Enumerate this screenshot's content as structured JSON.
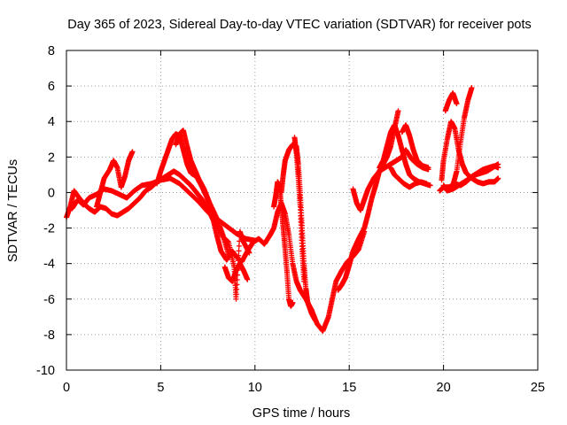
{
  "chart_data": {
    "type": "scatter",
    "title": "Day 365 of 2023, Sidereal Day-to-day VTEC variation (SDTVAR) for receiver pots",
    "xlabel": "GPS time / hours",
    "ylabel": "SDTVAR / TECUs",
    "xlim": [
      0,
      25
    ],
    "ylim": [
      -10,
      8
    ],
    "xticks": [
      0,
      5,
      10,
      15,
      20,
      25
    ],
    "yticks": [
      -10,
      -8,
      -6,
      -4,
      -2,
      0,
      2,
      4,
      6,
      8
    ],
    "grid": true,
    "marker": "+",
    "series": [
      {
        "name": "SDTVAR",
        "color": "#ff0000",
        "tracks": [
          [
            [
              0.0,
              -1.4
            ],
            [
              0.2,
              -0.8
            ],
            [
              0.4,
              0.1
            ],
            [
              0.6,
              -0.2
            ],
            [
              0.9,
              -0.6
            ],
            [
              1.2,
              -0.9
            ],
            [
              1.5,
              -1.1
            ],
            [
              1.8,
              -0.8
            ],
            [
              2.1,
              -0.9
            ],
            [
              2.4,
              -1.2
            ],
            [
              2.7,
              -1.3
            ],
            [
              3.0,
              -1.1
            ],
            [
              3.3,
              -0.9
            ],
            [
              3.6,
              -0.6
            ],
            [
              3.9,
              -0.3
            ],
            [
              4.2,
              0.1
            ],
            [
              4.5,
              0.3
            ],
            [
              4.8,
              0.6
            ],
            [
              5.1,
              0.8
            ],
            [
              5.4,
              1.0
            ],
            [
              5.7,
              1.2
            ],
            [
              6.0,
              1.0
            ],
            [
              6.3,
              0.7
            ],
            [
              6.6,
              0.4
            ],
            [
              6.9,
              0.0
            ],
            [
              7.2,
              -0.4
            ],
            [
              7.5,
              -0.9
            ],
            [
              7.8,
              -1.6
            ],
            [
              8.0,
              -2.5
            ],
            [
              8.2,
              -3.3
            ],
            [
              8.5,
              -3.8
            ],
            [
              8.8,
              -3.3
            ],
            [
              9.0,
              -3.6
            ],
            [
              9.3,
              -3.9
            ],
            [
              9.6,
              -3.3
            ],
            [
              9.9,
              -2.8
            ],
            [
              10.2,
              -2.6
            ],
            [
              10.5,
              -2.9
            ],
            [
              10.8,
              -2.4
            ],
            [
              11.0,
              -2.0
            ],
            [
              11.2,
              -1.1
            ],
            [
              11.4,
              -0.6
            ],
            [
              11.6,
              -1.2
            ],
            [
              11.8,
              -2.4
            ],
            [
              12.0,
              -4.0
            ],
            [
              12.2,
              -5.0
            ],
            [
              12.4,
              -5.5
            ],
            [
              12.7,
              -6.0
            ],
            [
              13.0,
              -6.6
            ],
            [
              13.3,
              -7.4
            ],
            [
              13.6,
              -7.8
            ],
            [
              13.9,
              -7.0
            ],
            [
              14.1,
              -6.0
            ],
            [
              14.3,
              -5.0
            ],
            [
              14.6,
              -4.4
            ],
            [
              14.9,
              -3.9
            ],
            [
              15.2,
              -3.6
            ],
            [
              15.5,
              -3.2
            ],
            [
              15.8,
              -2.2
            ]
          ],
          [
            [
              0.3,
              -0.9
            ],
            [
              0.6,
              -0.4
            ],
            [
              0.9,
              -0.7
            ],
            [
              1.2,
              -0.3
            ],
            [
              1.6,
              -0.1
            ],
            [
              2.0,
              0.2
            ],
            [
              2.4,
              0.1
            ],
            [
              2.8,
              -0.1
            ],
            [
              3.2,
              -0.3
            ],
            [
              3.6,
              0.1
            ],
            [
              4.0,
              0.4
            ],
            [
              4.5,
              0.5
            ],
            [
              5.0,
              0.7
            ],
            [
              5.5,
              0.8
            ],
            [
              6.0,
              0.5
            ],
            [
              6.5,
              0.0
            ],
            [
              7.0,
              -0.5
            ],
            [
              7.5,
              -1.1
            ],
            [
              8.0,
              -1.5
            ],
            [
              8.5,
              -1.9
            ],
            [
              9.0,
              -2.3
            ],
            [
              9.5,
              -2.6
            ],
            [
              10.0,
              -2.7
            ]
          ],
          [
            [
              4.8,
              0.5
            ],
            [
              5.0,
              1.2
            ],
            [
              5.2,
              1.8
            ],
            [
              5.4,
              2.4
            ],
            [
              5.6,
              3.0
            ],
            [
              5.8,
              3.3
            ],
            [
              6.0,
              3.2
            ],
            [
              6.2,
              2.4
            ],
            [
              6.4,
              1.6
            ],
            [
              6.6,
              1.1
            ],
            [
              6.9,
              0.9
            ],
            [
              7.2,
              0.3
            ],
            [
              7.5,
              -0.4
            ],
            [
              7.8,
              -1.1
            ],
            [
              8.0,
              -1.8
            ],
            [
              8.3,
              -2.5
            ],
            [
              8.6,
              -2.8
            ],
            [
              8.9,
              -4.2
            ],
            [
              9.0,
              -6.0
            ],
            [
              9.2,
              -2.2
            ],
            [
              9.4,
              -2.8
            ],
            [
              9.7,
              -3.4
            ]
          ],
          [
            [
              1.6,
              -0.8
            ],
            [
              1.8,
              0.0
            ],
            [
              2.0,
              0.8
            ],
            [
              2.3,
              1.3
            ],
            [
              2.5,
              1.8
            ],
            [
              2.7,
              1.4
            ],
            [
              2.9,
              0.3
            ],
            [
              3.1,
              0.9
            ],
            [
              3.3,
              1.8
            ],
            [
              3.5,
              2.3
            ]
          ],
          [
            [
              5.8,
              2.7
            ],
            [
              6.0,
              3.3
            ],
            [
              6.2,
              3.5
            ],
            [
              6.4,
              2.6
            ],
            [
              6.6,
              1.8
            ],
            [
              6.8,
              1.3
            ],
            [
              7.0,
              0.8
            ],
            [
              7.3,
              0.2
            ],
            [
              7.6,
              -0.6
            ],
            [
              8.0,
              -1.5
            ],
            [
              8.3,
              -2.4
            ],
            [
              8.6,
              -3.5
            ]
          ],
          [
            [
              8.4,
              -4.2
            ],
            [
              8.6,
              -4.8
            ],
            [
              8.8,
              -5.0
            ],
            [
              9.0,
              -4.4
            ],
            [
              9.2,
              -4.0
            ],
            [
              9.4,
              -4.4
            ],
            [
              9.6,
              -4.9
            ]
          ],
          [
            [
              11.0,
              -0.8
            ],
            [
              11.1,
              -0.2
            ],
            [
              11.2,
              0.6
            ],
            [
              11.3,
              0.4
            ],
            [
              11.4,
              -0.8
            ],
            [
              11.5,
              -2.0
            ],
            [
              11.6,
              -3.2
            ],
            [
              11.7,
              -4.5
            ],
            [
              11.8,
              -6.0
            ],
            [
              11.9,
              -6.4
            ],
            [
              12.0,
              -6.2
            ]
          ],
          [
            [
              11.4,
              0.0
            ],
            [
              11.5,
              1.0
            ],
            [
              11.6,
              1.8
            ],
            [
              11.8,
              2.4
            ],
            [
              12.0,
              2.7
            ],
            [
              12.2,
              2.6
            ],
            [
              12.3,
              1.6
            ],
            [
              12.4,
              0.0
            ],
            [
              12.5,
              -2.0
            ],
            [
              12.6,
              -4.0
            ],
            [
              12.7,
              -5.4
            ],
            [
              12.8,
              -6.2
            ],
            [
              13.0,
              -6.8
            ],
            [
              13.2,
              -7.2
            ]
          ],
          [
            [
              12.1,
              3.1
            ],
            [
              12.2,
              2.2
            ],
            [
              12.3,
              0.8
            ],
            [
              12.4,
              -0.8
            ],
            [
              12.5,
              -3.2
            ],
            [
              12.6,
              -5.0
            ]
          ],
          [
            [
              14.4,
              -5.5
            ],
            [
              14.6,
              -5.2
            ],
            [
              14.8,
              -4.8
            ],
            [
              15.0,
              -4.1
            ],
            [
              15.2,
              -3.3
            ],
            [
              15.5,
              -2.6
            ],
            [
              15.8,
              -2.0
            ],
            [
              16.0,
              -1.2
            ],
            [
              16.2,
              -0.3
            ],
            [
              16.4,
              0.4
            ],
            [
              16.6,
              1.2
            ],
            [
              16.8,
              1.6
            ],
            [
              17.0,
              2.0
            ],
            [
              17.2,
              2.6
            ],
            [
              17.4,
              3.6
            ],
            [
              17.6,
              4.6
            ]
          ],
          [
            [
              15.2,
              0.2
            ],
            [
              15.4,
              -0.6
            ],
            [
              15.6,
              -1.0
            ],
            [
              15.8,
              -0.4
            ],
            [
              16.0,
              0.2
            ],
            [
              16.3,
              0.8
            ],
            [
              16.6,
              1.2
            ],
            [
              16.9,
              1.4
            ],
            [
              17.2,
              1.6
            ],
            [
              17.5,
              1.8
            ],
            [
              17.8,
              2.0
            ],
            [
              18.0,
              2.4
            ],
            [
              18.3,
              1.9
            ],
            [
              18.6,
              1.6
            ],
            [
              18.9,
              1.4
            ],
            [
              19.2,
              1.3
            ]
          ],
          [
            [
              16.6,
              1.4
            ],
            [
              16.8,
              1.8
            ],
            [
              17.0,
              2.6
            ],
            [
              17.2,
              3.4
            ],
            [
              17.4,
              3.8
            ],
            [
              17.6,
              3.2
            ],
            [
              17.8,
              2.4
            ],
            [
              18.0,
              1.6
            ],
            [
              18.2,
              1.0
            ],
            [
              18.4,
              0.8
            ],
            [
              18.7,
              0.6
            ],
            [
              19.0,
              0.5
            ],
            [
              19.3,
              0.4
            ]
          ],
          [
            [
              17.2,
              1.4
            ],
            [
              17.4,
              1.0
            ],
            [
              17.6,
              0.8
            ],
            [
              17.9,
              0.5
            ],
            [
              18.2,
              0.3
            ],
            [
              18.5,
              0.5
            ],
            [
              18.8,
              0.6
            ],
            [
              19.1,
              0.5
            ]
          ],
          [
            [
              17.8,
              3.4
            ],
            [
              18.0,
              3.8
            ],
            [
              18.2,
              3.2
            ],
            [
              18.4,
              2.4
            ],
            [
              18.6,
              1.8
            ],
            [
              18.9,
              1.5
            ],
            [
              19.2,
              1.4
            ]
          ],
          [
            [
              20.0,
              0.4
            ],
            [
              20.2,
              0.1
            ],
            [
              20.5,
              0.2
            ],
            [
              20.8,
              0.4
            ],
            [
              21.1,
              0.6
            ],
            [
              21.4,
              0.8
            ],
            [
              21.7,
              1.0
            ],
            [
              22.0,
              1.1
            ],
            [
              22.3,
              1.2
            ],
            [
              22.6,
              1.4
            ],
            [
              22.9,
              1.6
            ]
          ],
          [
            [
              19.9,
              0.7
            ],
            [
              20.0,
              1.8
            ],
            [
              20.2,
              3.0
            ],
            [
              20.4,
              4.0
            ],
            [
              20.6,
              3.6
            ],
            [
              20.8,
              2.4
            ],
            [
              21.0,
              1.6
            ],
            [
              21.2,
              1.1
            ],
            [
              21.5,
              0.8
            ],
            [
              21.8,
              0.6
            ],
            [
              22.1,
              0.5
            ],
            [
              22.4,
              0.6
            ],
            [
              22.7,
              0.6
            ],
            [
              22.9,
              0.8
            ]
          ],
          [
            [
              20.1,
              4.6
            ],
            [
              20.3,
              5.2
            ],
            [
              20.5,
              5.6
            ],
            [
              20.7,
              5.0
            ]
          ],
          [
            [
              20.5,
              0.4
            ],
            [
              20.7,
              1.2
            ],
            [
              20.9,
              2.8
            ],
            [
              21.1,
              4.2
            ],
            [
              21.3,
              5.2
            ],
            [
              21.5,
              5.9
            ]
          ],
          [
            [
              19.8,
              0.1
            ],
            [
              20.0,
              0.3
            ],
            [
              20.3,
              0.3
            ],
            [
              20.6,
              0.5
            ],
            [
              20.9,
              0.4
            ],
            [
              21.2,
              0.6
            ],
            [
              21.5,
              0.9
            ],
            [
              21.8,
              1.1
            ],
            [
              22.1,
              1.3
            ],
            [
              22.4,
              1.4
            ],
            [
              22.7,
              1.5
            ],
            [
              22.9,
              1.4
            ]
          ]
        ]
      }
    ]
  }
}
